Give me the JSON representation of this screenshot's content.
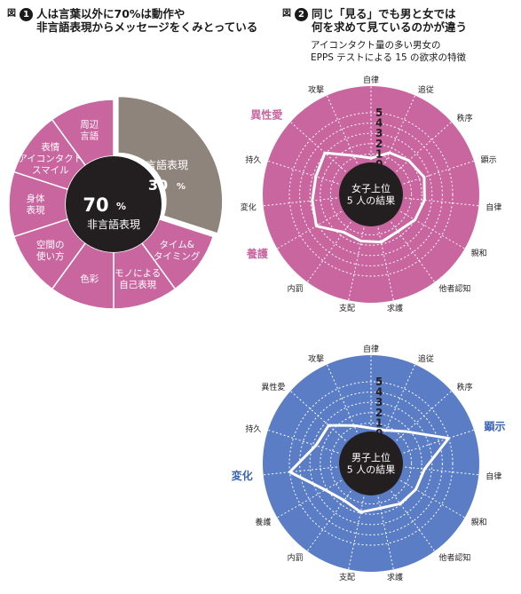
{
  "fig1": {
    "tag": "図",
    "number": "1",
    "title": "人は言葉以外に70%は動作や\n非言語表現からメッセージをくみとっている",
    "verbal": {
      "label": "言語表現",
      "value": "30",
      "unit": "%",
      "color": "#8f847c"
    },
    "nonverbal": {
      "value": "70",
      "unit": "%",
      "label": "非言語表現",
      "color": "#c9669f"
    },
    "segments": [
      {
        "lines": [
          "タイム&",
          "タイミング"
        ]
      },
      {
        "lines": [
          "モノによる",
          "自己表現"
        ]
      },
      {
        "lines": [
          "色彩"
        ]
      },
      {
        "lines": [
          "空間の",
          "使い方"
        ]
      },
      {
        "lines": [
          "身体",
          "表現"
        ]
      },
      {
        "lines": [
          "表情",
          "アイコンタクト",
          "スマイル"
        ]
      },
      {
        "lines": [
          "周辺",
          "言語"
        ]
      }
    ]
  },
  "fig2": {
    "tag": "図",
    "number": "2",
    "title": "同じ「見る」でも男と女では\n何を求めて見ているのかが違う",
    "subtitle": "アイコンタクト量の多い男女の\nEPPS テストによる 15 の欲求の特徴",
    "scale_labels": [
      "5",
      "4",
      "3",
      "2",
      "1",
      "0"
    ],
    "female": {
      "center_lines": [
        "女子上位",
        "5 人の結果"
      ],
      "color": "#c9669f",
      "highlights": [
        "異性愛",
        "養護"
      ],
      "highlight_color": "#c9669f"
    },
    "male": {
      "center_lines": [
        "男子上位",
        "5 人の結果"
      ],
      "color": "#5b7dc6",
      "highlights": [
        "顕示",
        "変化"
      ],
      "highlight_color": "#3d62b5"
    },
    "needs": [
      "自律",
      "追従",
      "秩序",
      "顕示",
      "自律",
      "親和",
      "他者認知",
      "求護",
      "支配",
      "内罰",
      "養護",
      "変化",
      "持久",
      "異性愛",
      "攻撃"
    ],
    "chart_data": [
      {
        "type": "radar",
        "name": "女子上位 5 人の結果",
        "axes": [
          "自律",
          "追従",
          "秩序",
          "顕示",
          "自律",
          "親和",
          "他者認知",
          "求護",
          "支配",
          "内罰",
          "養護",
          "変化",
          "持久",
          "異性愛",
          "攻撃"
        ],
        "range": [
          0,
          5
        ],
        "values": [
          0.6,
          1.5,
          2.0,
          2.5,
          2.3,
          2.0,
          1.5,
          1.8,
          1.7,
          1.6,
          3.2,
          2.8,
          2.7,
          3.1,
          1.2
        ]
      },
      {
        "type": "radar",
        "name": "男子上位 5 人の結果",
        "axes": [
          "自律",
          "追従",
          "秩序",
          "顕示",
          "自律",
          "親和",
          "他者認知",
          "求護",
          "支配",
          "内罰",
          "養護",
          "変化",
          "持久",
          "異性愛",
          "攻撃"
        ],
        "range": [
          0,
          5
        ],
        "values": [
          0.5,
          0.6,
          1.7,
          5.0,
          2.3,
          2.1,
          1.9,
          1.5,
          1.9,
          1.5,
          2.2,
          5.0,
          2.7,
          2.6,
          1.1
        ]
      }
    ]
  }
}
